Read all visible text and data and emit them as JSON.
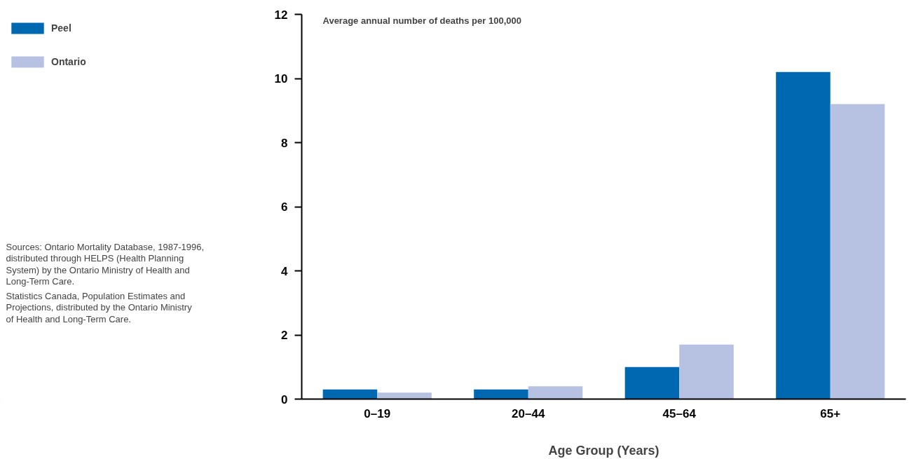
{
  "chart_data": {
    "type": "bar",
    "ylabel": "Average annual number of deaths per 100,000",
    "xlabel": "Age Group (Years)",
    "categories": [
      "0–19",
      "20–44",
      "45–64",
      "65+"
    ],
    "series": [
      {
        "name": "Peel",
        "color": "#0067b1",
        "values": [
          0.3,
          0.3,
          1.0,
          10.2
        ]
      },
      {
        "name": "Ontario",
        "color": "#b7c2e2",
        "values": [
          0.2,
          0.4,
          1.7,
          9.2
        ]
      }
    ],
    "ylim": [
      0,
      12
    ],
    "yticks": [
      0,
      2,
      4,
      6,
      8,
      10,
      12
    ],
    "grid": false,
    "legend": "top left",
    "annotations": [
      "Sources: Ontario Mortality Database, 1987-1996, distributed through HELPS (Health Planning System) by the Ontario Ministry of Health and Long-Term Care.",
      "Statistics Canada, Population Estimates and Projections, distributed by the Ontario Ministry of Health and Long-Term Care."
    ]
  }
}
